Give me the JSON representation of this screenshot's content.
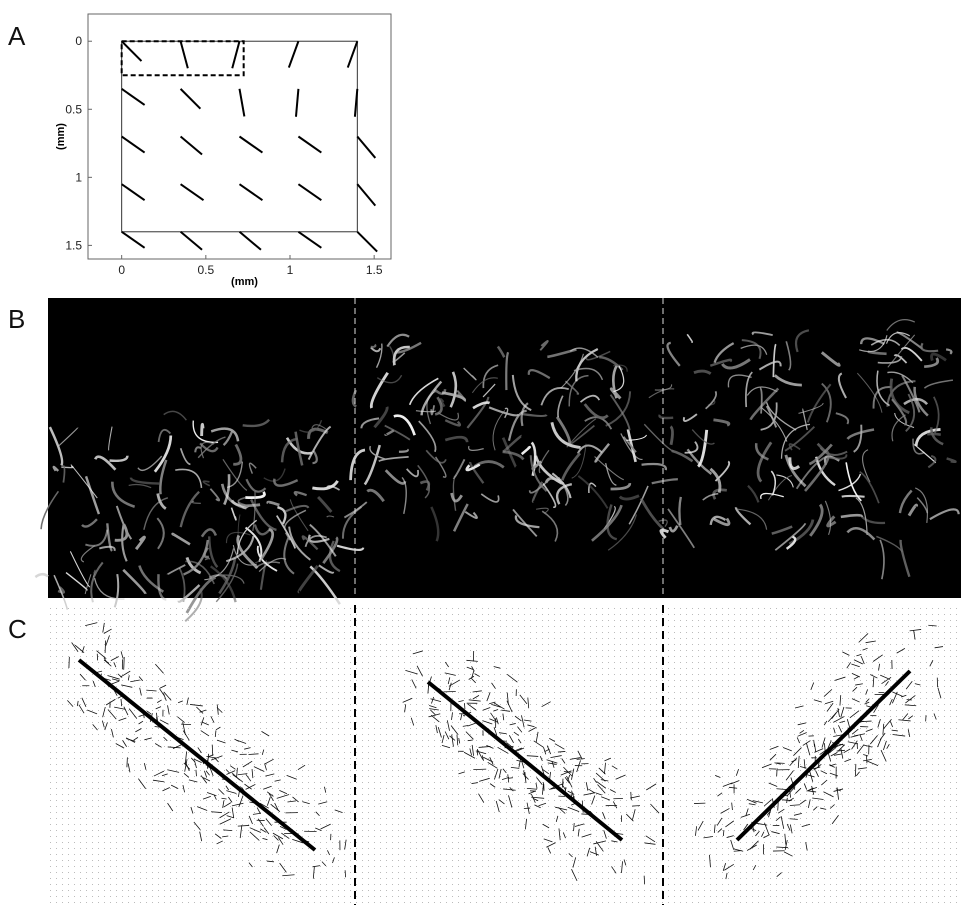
{
  "panel_labels": [
    "A",
    "B",
    "C"
  ],
  "chart_data": {
    "type": "orientation",
    "xlabel": "(mm)",
    "ylabel": "(mm)",
    "xlim": [
      -0.2,
      1.6
    ],
    "ylim": [
      -0.2,
      1.6
    ],
    "y_inverted": true,
    "xticks": [
      0,
      0.5,
      1,
      1.5
    ],
    "yticks": [
      0,
      0.5,
      1,
      1.5
    ],
    "color": "#000000",
    "x": [
      0,
      0.35,
      0.7,
      1.05,
      1.4,
      0,
      0.35,
      0.7,
      1.05,
      1.4,
      0,
      0.35,
      0.7,
      1.05,
      1.4,
      0,
      0.35,
      0.7,
      1.05,
      1.4,
      0,
      0.35,
      0.7,
      1.05,
      1.4
    ],
    "y": [
      0,
      0,
      0,
      0,
      0,
      0.35,
      0.35,
      0.35,
      0.35,
      0.35,
      0.7,
      0.7,
      0.7,
      0.7,
      0.7,
      1.05,
      1.05,
      1.05,
      1.05,
      1.05,
      1.4,
      1.4,
      1.4,
      1.4,
      1.4
    ],
    "angle": [
      45,
      15,
      -15,
      -20,
      -20,
      55,
      45,
      10,
      -5,
      -5,
      55,
      50,
      55,
      55,
      40,
      55,
      55,
      55,
      55,
      40,
      55,
      50,
      50,
      55,
      45
    ]
  }
}
